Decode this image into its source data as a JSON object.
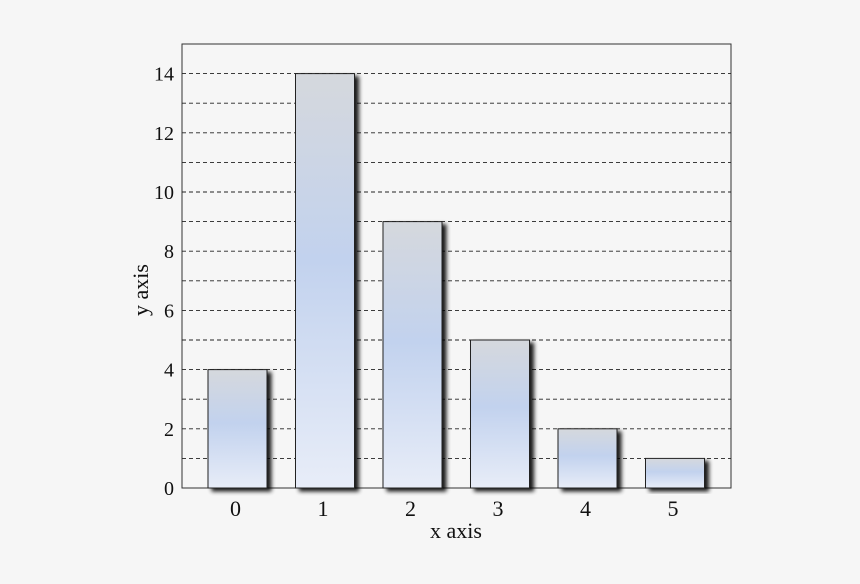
{
  "chart_data": {
    "type": "bar",
    "title": "",
    "categories": [
      "0",
      "1",
      "2",
      "3",
      "4",
      "5"
    ],
    "values": [
      4,
      14,
      9,
      5,
      2,
      1
    ],
    "xlabel": "x axis",
    "ylabel": "y axis",
    "ylim": [
      0,
      15
    ],
    "y_ticks": [
      "0",
      "2",
      "4",
      "6",
      "8",
      "10",
      "12",
      "14"
    ],
    "grid": true,
    "grid_style": "dashed horizontal every 1 unit",
    "legend": "none",
    "colors": {
      "background": "#f6f6f6",
      "plot_area": "#f6f6f6",
      "bar_top": "#d4d7dc",
      "bar_mid": "#c1d1ee",
      "bar_bottom": "#e6ebf7",
      "bar_border": "#222222",
      "grid": "#222222"
    }
  }
}
